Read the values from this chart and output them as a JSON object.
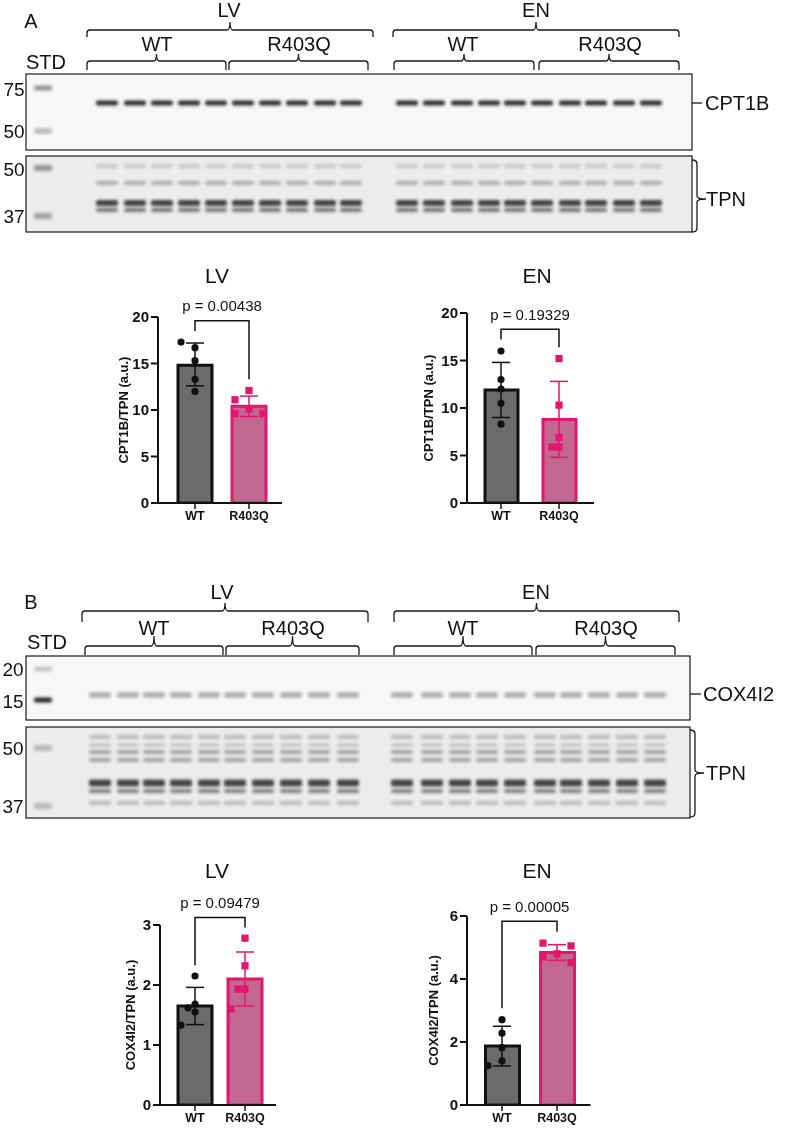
{
  "chart_data": [
    {
      "type": "other",
      "title": "A",
      "annotations": [
        "LV",
        "EN",
        "WT",
        "R403Q",
        "WT",
        "R403Q",
        "STD",
        "75",
        "50",
        "CPT1B",
        "50",
        "37",
        "TPN"
      ]
    },
    {
      "type": "bar",
      "title": "LV",
      "ylabel": "CPT1B/TPN (a.u.)",
      "categories": [
        "WT",
        "R403Q"
      ],
      "ylim": [
        0,
        20
      ],
      "yticks": [
        0,
        5,
        10,
        15,
        20
      ],
      "annotations": [
        "p = 0.00438"
      ],
      "series": [
        {
          "type": "bar",
          "values": [
            14.8,
            10.4
          ],
          "colors": [
            "#6b6b6b",
            "#c2678f"
          ],
          "errors": [
            [
              12.6,
              17.2
            ],
            1.1
          ]
        },
        {
          "type": "scatter",
          "x": [
            "WT",
            "WT",
            "WT",
            "WT",
            "WT"
          ],
          "values": [
            17.3,
            16.7,
            15.3,
            13.3,
            12.0
          ],
          "color": "#111111",
          "marker": "circle"
        },
        {
          "type": "scatter",
          "x": [
            "R403Q",
            "R403Q",
            "R403Q",
            "R403Q",
            "R403Q"
          ],
          "values": [
            12.1,
            11.1,
            10.1,
            9.6,
            9.6
          ],
          "color": "#e0176d",
          "marker": "square"
        }
      ]
    },
    {
      "type": "bar",
      "title": "EN",
      "ylabel": "CPT1B/TPN (a.u.)",
      "categories": [
        "WT",
        "R403Q"
      ],
      "ylim": [
        0,
        20
      ],
      "yticks": [
        0,
        5,
        10,
        15,
        20
      ],
      "annotations": [
        "p = 0.19329"
      ],
      "series": [
        {
          "type": "bar",
          "values": [
            11.9,
            8.8
          ],
          "colors": [
            "#6b6b6b",
            "#c2678f"
          ],
          "errors": [
            2.9,
            4.0
          ]
        },
        {
          "type": "scatter",
          "x": [
            "WT",
            "WT",
            "WT",
            "WT",
            "WT"
          ],
          "values": [
            16.0,
            13.0,
            12.0,
            10.5,
            8.3
          ],
          "color": "#111111",
          "marker": "circle"
        },
        {
          "type": "scatter",
          "x": [
            "R403Q",
            "R403Q",
            "R403Q",
            "R403Q",
            "R403Q"
          ],
          "values": [
            15.2,
            10.3,
            6.9,
            5.9,
            5.9
          ],
          "color": "#e0176d",
          "marker": "square"
        }
      ]
    },
    {
      "type": "other",
      "title": "B",
      "annotations": [
        "LV",
        "EN",
        "WT",
        "R403Q",
        "WT",
        "R403Q",
        "STD",
        "20",
        "15",
        "COX4I2",
        "50",
        "37",
        "TPN"
      ]
    },
    {
      "type": "bar",
      "title": "LV",
      "ylabel": "COX4I2/TPN (a.u.)",
      "categories": [
        "WT",
        "R403Q"
      ],
      "ylim": [
        0,
        3
      ],
      "yticks": [
        0,
        1,
        2,
        3
      ],
      "annotations": [
        "p = 0.09479"
      ],
      "series": [
        {
          "type": "bar",
          "values": [
            1.65,
            2.1
          ],
          "colors": [
            "#6b6b6b",
            "#c2678f"
          ],
          "errors": [
            0.31,
            0.45
          ]
        },
        {
          "type": "scatter",
          "x": [
            "WT",
            "WT",
            "WT",
            "WT",
            "WT"
          ],
          "values": [
            2.15,
            1.68,
            1.62,
            1.55,
            1.33
          ],
          "color": "#111111",
          "marker": "circle"
        },
        {
          "type": "scatter",
          "x": [
            "R403Q",
            "R403Q",
            "R403Q",
            "R403Q",
            "R403Q"
          ],
          "values": [
            2.78,
            2.32,
            1.93,
            1.93,
            1.6
          ],
          "color": "#e0176d",
          "marker": "square"
        }
      ]
    },
    {
      "type": "bar",
      "title": "EN",
      "ylabel": "COX4I2/TPN (a.u.)",
      "categories": [
        "WT",
        "R403Q"
      ],
      "ylim": [
        0,
        6
      ],
      "yticks": [
        0,
        2,
        4,
        6
      ],
      "annotations": [
        "p = 0.00005"
      ],
      "series": [
        {
          "type": "bar",
          "values": [
            1.87,
            4.84
          ],
          "colors": [
            "#6b6b6b",
            "#c2678f"
          ],
          "errors": [
            0.63,
            0.25
          ]
        },
        {
          "type": "scatter",
          "x": [
            "WT",
            "WT",
            "WT",
            "WT",
            "WT"
          ],
          "values": [
            2.71,
            2.28,
            1.82,
            1.4,
            1.25
          ],
          "color": "#111111",
          "marker": "circle"
        },
        {
          "type": "scatter",
          "x": [
            "R403Q",
            "R403Q",
            "R403Q",
            "R403Q",
            "R403Q"
          ],
          "values": [
            5.14,
            5.05,
            4.8,
            4.7,
            4.52
          ],
          "color": "#e0176d",
          "marker": "square"
        }
      ]
    }
  ]
}
